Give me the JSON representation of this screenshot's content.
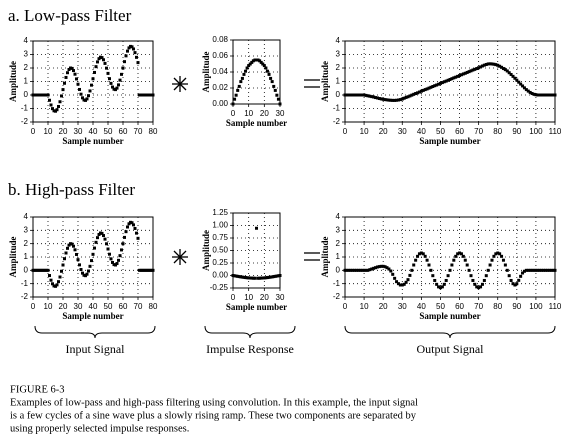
{
  "sections": [
    {
      "title": "a. Low-pass Filter"
    },
    {
      "title": "b. High-pass Filter"
    }
  ],
  "chart_data": [
    {
      "type": "scatter",
      "xlabel": "Sample number",
      "ylabel": "Amplitude",
      "color": "#000000",
      "grid": true,
      "xlim": [
        0,
        80
      ],
      "xticks": [
        0,
        10,
        20,
        30,
        40,
        50,
        60,
        70,
        80
      ],
      "ylim": [
        -2,
        4
      ],
      "yticks": [
        -2,
        -1,
        0,
        1,
        2,
        3,
        4
      ],
      "values": [
        0,
        0,
        0,
        0,
        0,
        0,
        0,
        0,
        0,
        0,
        0,
        -0.39,
        -0.74,
        -1.01,
        -1.17,
        -1.2,
        -1.09,
        -0.85,
        -0.5,
        -0.07,
        0.4,
        0.87,
        1.3,
        1.65,
        1.89,
        2,
        1.97,
        1.81,
        1.54,
        1.19,
        0.8,
        0.41,
        0.06,
        -0.21,
        -0.37,
        -0.4,
        -0.29,
        -0.05,
        0.3,
        0.73,
        1.2,
        1.67,
        2.1,
        2.45,
        2.69,
        2.8,
        2.77,
        2.61,
        2.34,
        1.99,
        1.6,
        1.21,
        0.86,
        0.59,
        0.43,
        0.4,
        0.51,
        0.75,
        1.1,
        1.53,
        2,
        2.47,
        2.9,
        3.25,
        3.49,
        3.6,
        3.57,
        3.41,
        3.14,
        2.79,
        2.4,
        0,
        0,
        0,
        0,
        0,
        0,
        0,
        0,
        0,
        0
      ]
    },
    {
      "type": "scatter",
      "xlabel": "Sample number",
      "ylabel": "Amplitude",
      "color": "#000000",
      "grid": true,
      "xlim": [
        0,
        30
      ],
      "xticks": [
        0,
        10,
        20,
        30
      ],
      "ylim": [
        0,
        0.08
      ],
      "yticks": [
        {
          "value": 0,
          "label": "0.00"
        },
        {
          "value": 0.02,
          "label": "0.02"
        },
        {
          "value": 0.04,
          "label": "0.04"
        },
        {
          "value": 0.06,
          "label": "0.06"
        },
        {
          "value": 0.08,
          "label": "0.08"
        }
      ],
      "values": [
        0,
        0.006,
        0.011,
        0.017,
        0.022,
        0.028,
        0.032,
        0.037,
        0.041,
        0.045,
        0.048,
        0.05,
        0.052,
        0.054,
        0.055,
        0.055,
        0.055,
        0.054,
        0.052,
        0.05,
        0.048,
        0.045,
        0.041,
        0.037,
        0.032,
        0.028,
        0.022,
        0.017,
        0.011,
        0.006,
        0
      ]
    },
    {
      "type": "scatter",
      "xlabel": "Sample number",
      "ylabel": "Amplitude",
      "color": "#000000",
      "grid": true,
      "xlim": [
        0,
        110
      ],
      "xticks": [
        0,
        10,
        20,
        30,
        40,
        50,
        60,
        70,
        80,
        90,
        100,
        110
      ],
      "ylim": [
        -2,
        4
      ],
      "yticks": [
        -2,
        -1,
        0,
        1,
        2,
        3,
        4
      ],
      "values": [
        0,
        0,
        0,
        0,
        0,
        0,
        0,
        0,
        0,
        0,
        0,
        -0.03,
        -0.06,
        -0.09,
        -0.12,
        -0.15,
        -0.19,
        -0.22,
        -0.26,
        -0.29,
        -0.32,
        -0.34,
        -0.36,
        -0.38,
        -0.39,
        -0.4,
        -0.4,
        -0.39,
        -0.37,
        -0.34,
        -0.3,
        -0.24,
        -0.18,
        -0.13,
        -0.07,
        -0.01,
        0.05,
        0.11,
        0.16,
        0.22,
        0.28,
        0.34,
        0.4,
        0.45,
        0.51,
        0.57,
        0.63,
        0.69,
        0.74,
        0.8,
        0.86,
        0.92,
        0.98,
        1.03,
        1.09,
        1.15,
        1.21,
        1.27,
        1.32,
        1.38,
        1.44,
        1.5,
        1.56,
        1.61,
        1.67,
        1.73,
        1.79,
        1.85,
        1.9,
        1.96,
        2.02,
        2.08,
        2.15,
        2.21,
        2.26,
        2.3,
        2.31,
        2.3,
        2.28,
        2.25,
        2.2,
        2.13,
        2.05,
        1.96,
        1.88,
        1.78,
        1.65,
        1.52,
        1.38,
        1.24,
        1.1,
        0.95,
        0.81,
        0.67,
        0.53,
        0.4,
        0.29,
        0.19,
        0.11,
        0.05,
        0.02,
        0,
        0,
        0,
        0,
        0,
        0,
        0,
        0,
        0,
        0
      ]
    },
    {
      "type": "scatter",
      "xlabel": "Sample number",
      "ylabel": "Amplitude",
      "color": "#000000",
      "grid": true,
      "xlim": [
        0,
        80
      ],
      "xticks": [
        0,
        10,
        20,
        30,
        40,
        50,
        60,
        70,
        80
      ],
      "ylim": [
        -2,
        4
      ],
      "yticks": [
        -2,
        -1,
        0,
        1,
        2,
        3,
        4
      ],
      "values": [
        0,
        0,
        0,
        0,
        0,
        0,
        0,
        0,
        0,
        0,
        0,
        -0.39,
        -0.74,
        -1.01,
        -1.17,
        -1.2,
        -1.09,
        -0.85,
        -0.5,
        -0.07,
        0.4,
        0.87,
        1.3,
        1.65,
        1.89,
        2,
        1.97,
        1.81,
        1.54,
        1.19,
        0.8,
        0.41,
        0.06,
        -0.21,
        -0.37,
        -0.4,
        -0.29,
        -0.05,
        0.3,
        0.73,
        1.2,
        1.67,
        2.1,
        2.45,
        2.69,
        2.8,
        2.77,
        2.61,
        2.34,
        1.99,
        1.6,
        1.21,
        0.86,
        0.59,
        0.43,
        0.4,
        0.51,
        0.75,
        1.1,
        1.53,
        2,
        2.47,
        2.9,
        3.25,
        3.49,
        3.6,
        3.57,
        3.41,
        3.14,
        2.79,
        2.4,
        0,
        0,
        0,
        0,
        0,
        0,
        0,
        0,
        0,
        0
      ]
    },
    {
      "type": "scatter",
      "xlabel": "Sample number",
      "ylabel": "Amplitude",
      "color": "#000000",
      "grid": true,
      "xlim": [
        0,
        30
      ],
      "xticks": [
        0,
        10,
        20,
        30
      ],
      "ylim": [
        -0.25,
        1.25
      ],
      "yticks": [
        {
          "value": -0.25,
          "label": "-0.25"
        },
        {
          "value": 0,
          "label": "0.00"
        },
        {
          "value": 0.25,
          "label": "0.25"
        },
        {
          "value": 0.5,
          "label": "0.50"
        },
        {
          "value": 0.75,
          "label": "0.75"
        },
        {
          "value": 1,
          "label": "1.00"
        },
        {
          "value": 1.25,
          "label": "1.25"
        }
      ],
      "values": [
        0,
        -0.006,
        -0.011,
        -0.017,
        -0.022,
        -0.028,
        -0.032,
        -0.037,
        -0.041,
        -0.045,
        -0.048,
        -0.05,
        -0.052,
        -0.054,
        -0.055,
        0.945,
        -0.055,
        -0.054,
        -0.052,
        -0.05,
        -0.048,
        -0.045,
        -0.041,
        -0.037,
        -0.032,
        -0.028,
        -0.022,
        -0.017,
        -0.011,
        -0.006,
        0
      ]
    },
    {
      "type": "scatter",
      "xlabel": "Sample number",
      "ylabel": "Amplitude",
      "color": "#000000",
      "grid": true,
      "xlim": [
        0,
        110
      ],
      "xticks": [
        0,
        10,
        20,
        30,
        40,
        50,
        60,
        70,
        80,
        90,
        100,
        110
      ],
      "ylim": [
        -2,
        4
      ],
      "yticks": [
        -2,
        -1,
        0,
        1,
        2,
        3,
        4
      ],
      "values": [
        0,
        0,
        0,
        0,
        0,
        0,
        0,
        0,
        0,
        0,
        0,
        0,
        0,
        0.05,
        0.1,
        0.15,
        0.2,
        0.25,
        0.28,
        0.3,
        0.3,
        0.27,
        0.2,
        0.1,
        -0.05,
        -0.3,
        -0.6,
        -0.85,
        -1,
        -1.1,
        -1.1,
        -1.05,
        -0.9,
        -0.7,
        -0.38,
        0,
        0.4,
        0.76,
        1.05,
        1.24,
        1.3,
        1.24,
        1.05,
        0.76,
        0.4,
        0,
        -0.4,
        -0.76,
        -1.05,
        -1.24,
        -1.3,
        -1.24,
        -1.05,
        -0.76,
        -0.4,
        0,
        0.4,
        0.76,
        1.05,
        1.24,
        1.3,
        1.24,
        1.05,
        0.76,
        0.4,
        0,
        -0.4,
        -0.76,
        -1.05,
        -1.24,
        -1.3,
        -1.24,
        -1.05,
        -0.76,
        -0.4,
        0,
        0.4,
        0.76,
        1.05,
        1.24,
        1.3,
        1.24,
        1.05,
        0.76,
        0.4,
        0,
        -0.4,
        -0.76,
        -1,
        -1.1,
        -1,
        -0.75,
        -0.45,
        -0.2,
        -0.07,
        0,
        0,
        0,
        0,
        0,
        0,
        0,
        0,
        0,
        0,
        0,
        0,
        0,
        0,
        0,
        0
      ]
    }
  ],
  "labels": [
    "Input Signal",
    "Impulse Response",
    "Output Signal"
  ],
  "caption": {
    "title": "FIGURE 6-3",
    "lines": [
      "Examples of low-pass and high-pass filtering using convolution.  In this example, the input signal",
      "is a few cycles of a sine wave plus a slowly rising ramp. These two components are separated by",
      "using properly selected impulse responses."
    ]
  }
}
